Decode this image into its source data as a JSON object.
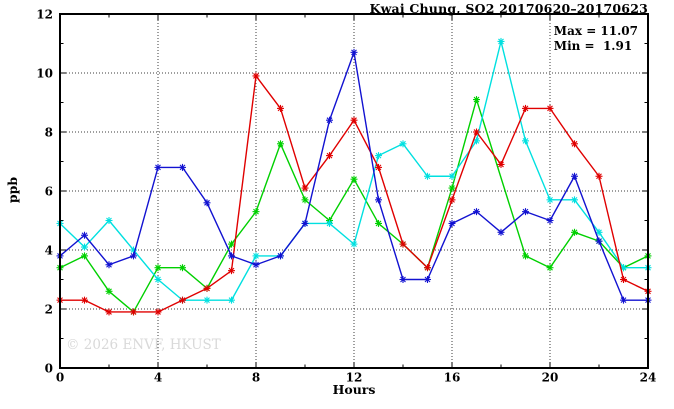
{
  "page": {
    "watermark": "© 2026 ENVF, HKUST"
  },
  "chart_data": {
    "type": "line",
    "title": "Kwai Chung, SO2 20170620–20170623",
    "xlabel": "Hours",
    "ylabel": "ppb",
    "xlim": [
      0,
      24
    ],
    "ylim": [
      0,
      12
    ],
    "x_major_ticks": [
      0,
      4,
      8,
      12,
      16,
      20,
      24
    ],
    "x_minor_ticks": [
      2,
      6,
      10,
      14,
      18,
      22
    ],
    "y_major_ticks": [
      0,
      2,
      4,
      6,
      8,
      10,
      12
    ],
    "y_minor_ticks": [
      1,
      3,
      5,
      7,
      9,
      11
    ],
    "x_gridlines": [
      4,
      8,
      12,
      16,
      20
    ],
    "y_gridlines": [
      2,
      4,
      6,
      8,
      10
    ],
    "grid": true,
    "legend_position": "none",
    "marker": "asterisk",
    "annotations": {
      "max_label": "Max = 11.07",
      "min_label": "Min =  1.91"
    },
    "stats": {
      "max": 11.07,
      "min": 1.91
    },
    "x": [
      0,
      1,
      2,
      3,
      4,
      5,
      6,
      7,
      8,
      9,
      10,
      11,
      12,
      13,
      14,
      15,
      16,
      17,
      18,
      19,
      20,
      21,
      22,
      23,
      24
    ],
    "series": [
      {
        "name": "green",
        "color": "#00d000",
        "values": [
          3.4,
          3.8,
          2.6,
          1.9,
          3.4,
          3.4,
          2.7,
          4.2,
          5.3,
          7.6,
          5.7,
          5.0,
          6.4,
          4.9,
          4.2,
          3.4,
          6.1,
          9.1,
          null,
          3.8,
          3.4,
          4.6,
          4.3,
          3.4,
          3.8
        ]
      },
      {
        "name": "cyan",
        "color": "#00e0e0",
        "values": [
          4.9,
          4.1,
          5.0,
          4.0,
          3.0,
          2.3,
          2.3,
          2.3,
          3.8,
          3.8,
          4.9,
          4.9,
          4.2,
          7.2,
          7.6,
          6.5,
          6.5,
          7.7,
          11.07,
          7.7,
          5.7,
          5.7,
          4.6,
          3.4,
          3.4
        ]
      },
      {
        "name": "red",
        "color": "#e00000",
        "values": [
          2.3,
          2.3,
          1.9,
          1.9,
          1.9,
          2.3,
          2.7,
          3.3,
          9.9,
          8.8,
          6.1,
          7.2,
          8.4,
          6.8,
          4.2,
          3.4,
          5.7,
          8.0,
          6.9,
          8.8,
          8.8,
          7.6,
          6.5,
          3.0,
          2.6
        ]
      },
      {
        "name": "blue",
        "color": "#1212d1",
        "values": [
          3.8,
          4.5,
          3.5,
          3.8,
          6.8,
          6.8,
          5.6,
          3.8,
          3.5,
          3.8,
          4.9,
          8.4,
          10.7,
          5.7,
          3.0,
          3.0,
          4.9,
          5.3,
          4.6,
          5.3,
          5.0,
          6.5,
          4.3,
          2.3,
          2.3
        ]
      }
    ]
  }
}
